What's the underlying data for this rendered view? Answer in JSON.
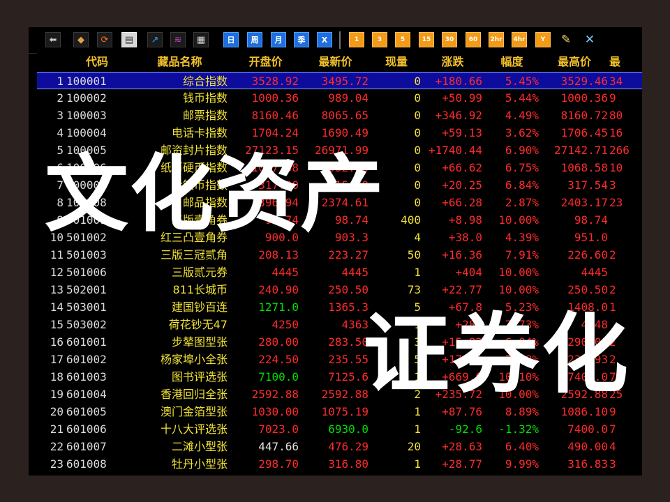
{
  "toolbar": {
    "buttons": [
      {
        "icon": "back-arrow-icon",
        "glyph": "⬅"
      },
      {
        "icon": "cube-icon",
        "glyph": "◆"
      },
      {
        "icon": "refresh-icon",
        "glyph": "⟳"
      },
      {
        "icon": "clipboard-icon",
        "glyph": "▤",
        "active": true
      },
      {
        "icon": "line-chart-icon",
        "glyph": "↗"
      },
      {
        "icon": "chart-icon",
        "glyph": "≋"
      },
      {
        "icon": "table-icon",
        "glyph": "▦"
      }
    ],
    "calendar": [
      "日",
      "周",
      "月",
      "季",
      "X"
    ],
    "periods": [
      "1",
      "3",
      "5",
      "15",
      "30",
      "60",
      "2hr",
      "4hr",
      "Y"
    ],
    "tools": [
      {
        "icon": "edit-icon",
        "glyph": "✎"
      },
      {
        "icon": "tools-icon",
        "glyph": "✕"
      }
    ]
  },
  "table": {
    "headers": [
      "代码",
      "藏品名称",
      "开盘价",
      "最新价",
      "现量",
      "涨跌",
      "幅度",
      "最高价",
      "最"
    ],
    "rows": [
      {
        "no": "1",
        "code": "100001",
        "name": "综合指数",
        "open": "3528.92",
        "last": "3495.72",
        "vol": "0",
        "chg": "+180.66",
        "pct": "5.45%",
        "high": "3529.46",
        "more": "34",
        "selected": true
      },
      {
        "no": "2",
        "code": "100002",
        "name": "钱币指数",
        "open": "1000.36",
        "last": "989.04",
        "vol": "0",
        "chg": "+50.99",
        "pct": "5.44%",
        "high": "1000.36",
        "more": "9"
      },
      {
        "no": "3",
        "code": "100003",
        "name": "邮票指数",
        "open": "8160.46",
        "last": "8065.65",
        "vol": "0",
        "chg": "+346.92",
        "pct": "4.49%",
        "high": "8160.72",
        "more": "80"
      },
      {
        "no": "4",
        "code": "100004",
        "name": "电话卡指数",
        "open": "1704.24",
        "last": "1690.49",
        "vol": "0",
        "chg": "+59.13",
        "pct": "3.62%",
        "high": "1706.45",
        "more": "16"
      },
      {
        "no": "5",
        "code": "100005",
        "name": "邮资封片指数",
        "open": "27123.15",
        "last": "26971.99",
        "vol": "0",
        "chg": "+1740.44",
        "pct": "6.90%",
        "high": "27142.71",
        "more": "266"
      },
      {
        "no": "6",
        "code": "100006",
        "name": "纸币硬币指数",
        "open": "1067.68",
        "last": "1052.58",
        "vol": "0",
        "chg": "+66.62",
        "pct": "6.75%",
        "high": "1068.58",
        "more": "10"
      },
      {
        "no": "7",
        "code": "100007",
        "name": "金银币指数",
        "open": "317.30",
        "last": "315.20",
        "vol": "0",
        "chg": "+20.25",
        "pct": "6.84%",
        "high": "317.54",
        "more": "3"
      },
      {
        "no": "8",
        "code": "100008",
        "name": "邮品指数",
        "open": "2396.94",
        "last": "2374.61",
        "vol": "0",
        "chg": "+66.28",
        "pct": "2.87%",
        "high": "2403.17",
        "more": "23"
      },
      {
        "no": "9",
        "code": "501001",
        "name": "三版壹角券",
        "open": "98.74",
        "last": "98.74",
        "vol": "400",
        "chg": "+8.98",
        "pct": "10.00%",
        "high": "98.74",
        "more": ""
      },
      {
        "no": "10",
        "code": "501002",
        "name": "红三凸壹角券",
        "open": "900.0",
        "last": "903.3",
        "vol": "4",
        "chg": "+38.0",
        "pct": "4.39%",
        "high": "951.0",
        "more": ""
      },
      {
        "no": "11",
        "code": "501003",
        "name": "三版三冠贰角",
        "open": "208.13",
        "last": "223.27",
        "vol": "50",
        "chg": "+16.36",
        "pct": "7.91%",
        "high": "226.60",
        "more": "2"
      },
      {
        "no": "12",
        "code": "501006",
        "name": "三版贰元券",
        "open": "4445",
        "last": "4445",
        "vol": "1",
        "chg": "+404",
        "pct": "10.00%",
        "high": "4445",
        "more": ""
      },
      {
        "no": "13",
        "code": "502001",
        "name": "811长城币",
        "open": "240.90",
        "last": "250.50",
        "vol": "73",
        "chg": "+22.77",
        "pct": "10.00%",
        "high": "250.50",
        "more": "2"
      },
      {
        "no": "14",
        "code": "503001",
        "name": "建国钞百连",
        "open": "1271.0",
        "last": "1365.3",
        "vol": "5",
        "chg": "+67.8",
        "pct": "5.23%",
        "high": "1408.0",
        "more": "1",
        "open_dn": true
      },
      {
        "no": "15",
        "code": "503002",
        "name": "荷花钞无47",
        "open": "4250",
        "last": "4363",
        "vol": "1",
        "chg": "+288",
        "pct": "7.73%",
        "high": "4448",
        "more": ""
      },
      {
        "no": "16",
        "code": "601001",
        "name": "步辇图型张",
        "open": "280.00",
        "last": "283.50",
        "vol": "3",
        "chg": "+15.82",
        "pct": "6.04%",
        "high": "290.00",
        "more": "2"
      },
      {
        "no": "17",
        "code": "601002",
        "name": "杨家埠小全张",
        "open": "224.50",
        "last": "235.55",
        "vol": "5",
        "chg": "+17.41",
        "pct": "7.78%",
        "high": "235.93",
        "more": "2"
      },
      {
        "no": "18",
        "code": "601003",
        "name": "图书评选张",
        "open": "7100.0",
        "last": "7125.6",
        "vol": "1",
        "chg": "+669.0",
        "pct": "10.10%",
        "high": "7400.0",
        "more": "7",
        "open_dn": true
      },
      {
        "no": "19",
        "code": "601004",
        "name": "香港回归全张",
        "open": "2592.88",
        "last": "2592.88",
        "vol": "2",
        "chg": "+235.72",
        "pct": "10.00%",
        "high": "2592.88",
        "more": "25"
      },
      {
        "no": "20",
        "code": "601005",
        "name": "澳门金箔型张",
        "open": "1030.00",
        "last": "1075.19",
        "vol": "1",
        "chg": "+87.76",
        "pct": "8.89%",
        "high": "1086.10",
        "more": "9"
      },
      {
        "no": "21",
        "code": "601006",
        "name": "十八大评选张",
        "open": "7023.0",
        "last": "6930.0",
        "vol": "1",
        "chg": "-92.6",
        "pct": "-1.32%",
        "high": "7400.0",
        "more": "7",
        "last_dn": true,
        "chg_dn": true
      },
      {
        "no": "22",
        "code": "601007",
        "name": "二滩小型张",
        "open": "447.66",
        "last": "476.29",
        "vol": "20",
        "chg": "+28.63",
        "pct": "6.40%",
        "high": "490.00",
        "more": "4",
        "open_eq": true
      },
      {
        "no": "23",
        "code": "601008",
        "name": "牡丹小型张",
        "open": "298.70",
        "last": "316.80",
        "vol": "1",
        "chg": "+28.77",
        "pct": "9.99%",
        "high": "316.83",
        "more": "3"
      }
    ]
  },
  "overlay": {
    "line1": "文化资产",
    "line2": "证券化"
  }
}
